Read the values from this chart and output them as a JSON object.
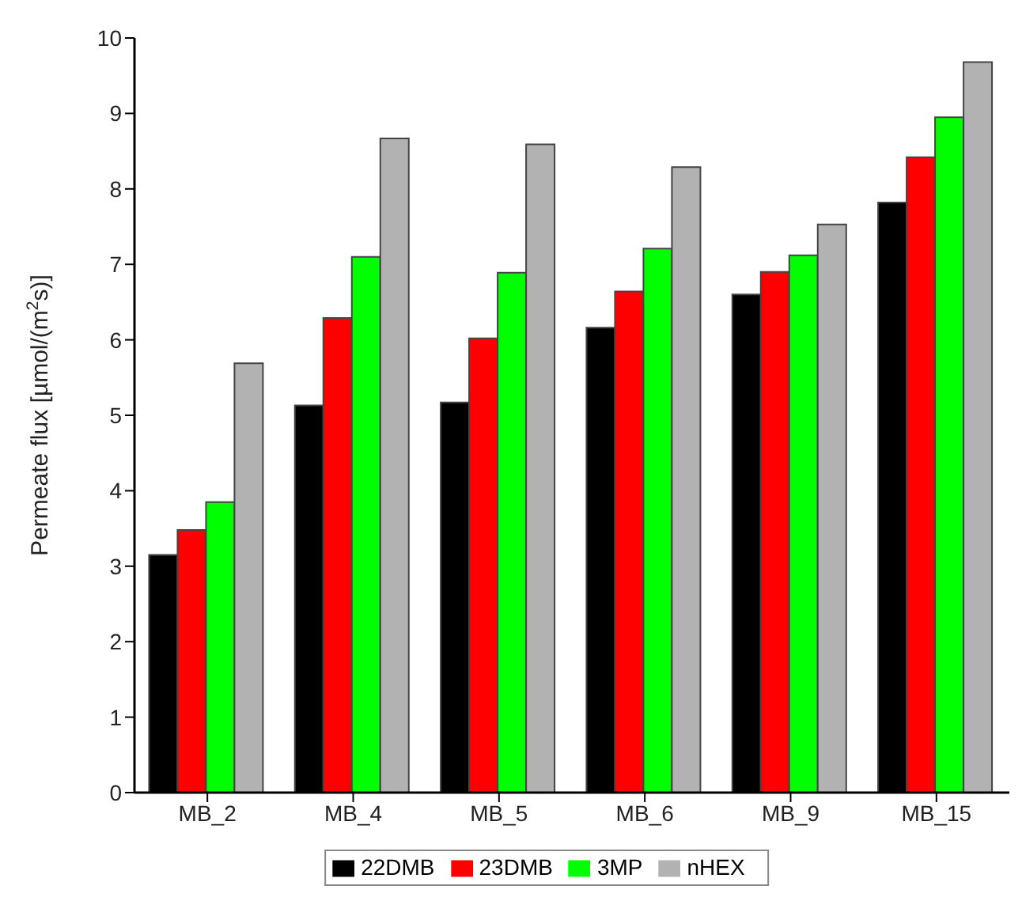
{
  "chart_data": {
    "type": "bar",
    "ylabel": "Permeate flux [µmol/(m$^{2}$s)]",
    "categories": [
      "MB_2",
      "MB_4",
      "MB_5",
      "MB_6",
      "MB_9",
      "MB_15"
    ],
    "series": [
      {
        "name": "22DMB",
        "color": "#000000",
        "values": [
          3.15,
          5.13,
          5.17,
          6.16,
          6.6,
          7.82
        ]
      },
      {
        "name": "23DMB",
        "color": "#ff0000",
        "values": [
          3.48,
          6.29,
          6.02,
          6.64,
          6.9,
          8.42
        ]
      },
      {
        "name": "3MP",
        "color": "#00ff00",
        "values": [
          3.85,
          7.1,
          6.89,
          7.21,
          7.12,
          8.95
        ]
      },
      {
        "name": "nHEX",
        "color": "#b2b2b2",
        "values": [
          5.69,
          8.67,
          8.59,
          8.29,
          7.53,
          9.68
        ]
      }
    ],
    "ylim": [
      0,
      10
    ],
    "yticks": [
      0,
      1,
      2,
      3,
      4,
      5,
      6,
      7,
      8,
      9,
      10
    ],
    "grid": false,
    "legend": "bottom"
  }
}
